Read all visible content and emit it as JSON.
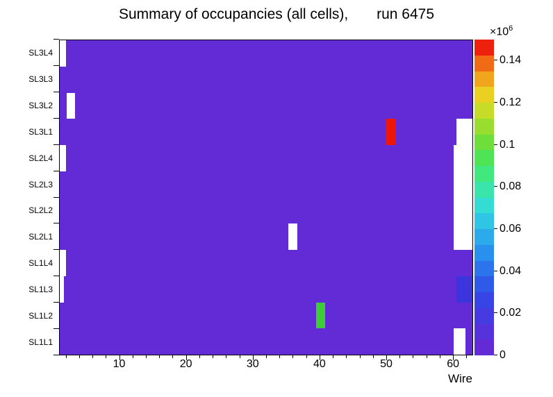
{
  "chart_data": {
    "type": "heatmap",
    "title": "Summary of occupancies (all cells),       run 6475",
    "xlabel": "Wire",
    "ylabel": "",
    "x_min": 1,
    "x_max": 63,
    "x_major_ticks": [
      10,
      20,
      30,
      40,
      50,
      60
    ],
    "x_minor_tick_step": 2,
    "rows_bottom_to_top": [
      "SL1L1",
      "SL1L2",
      "SL1L3",
      "SL1L4",
      "SL2L1",
      "SL2L2",
      "SL2L3",
      "SL2L4",
      "SL3L1",
      "SL3L2",
      "SL3L3",
      "SL3L4"
    ],
    "background_color": "#632bd5",
    "background_value_est_e6": 0.005,
    "colorbar": {
      "multiplier_base": "×10",
      "multiplier_exp": "6",
      "vmin": 0,
      "vmax": 0.15,
      "tick_values": [
        0,
        0.02,
        0.04,
        0.06,
        0.08,
        0.1,
        0.12,
        0.14
      ],
      "tick_labels": [
        "0",
        "0.02",
        "0.04",
        "0.06",
        "0.08",
        "0.1",
        "0.12",
        "0.14"
      ],
      "colors_bottom_to_top": [
        "#632bd5",
        "#5532dc",
        "#453be1",
        "#3845e6",
        "#2f5ae9",
        "#2b74ec",
        "#2a90ee",
        "#2cabec",
        "#2fc6e6",
        "#35dcd4",
        "#3ae5ab",
        "#41e87e",
        "#4fe455",
        "#6ede3a",
        "#99de2e",
        "#c6dc28",
        "#e9d023",
        "#f0a51d",
        "#f16a15",
        "#ee200e"
      ]
    },
    "cells": [
      {
        "row": "SL3L4",
        "w0": 1,
        "w1": 1.9,
        "color": "#ffffff",
        "kind": "empty"
      },
      {
        "row": "SL3L2",
        "w0": 2,
        "w1": 3.3,
        "color": "#ffffff",
        "kind": "empty"
      },
      {
        "row": "SL3L1",
        "w0": 50,
        "w1": 51.5,
        "color": "#ee1509",
        "kind": "hot",
        "value_est_e6": 0.15
      },
      {
        "row": "SL3L1",
        "w0": 60.6,
        "w1": 63,
        "color": "#ffffff",
        "kind": "empty"
      },
      {
        "row": "SL2L4",
        "w0": 1,
        "w1": 1.9,
        "color": "#ffffff",
        "kind": "empty"
      },
      {
        "row": "SL2L4",
        "w0": 60.2,
        "w1": 63,
        "color": "#ffffff",
        "kind": "empty"
      },
      {
        "row": "SL2L3",
        "w0": 60.2,
        "w1": 63,
        "color": "#ffffff",
        "kind": "empty"
      },
      {
        "row": "SL2L2",
        "w0": 60.2,
        "w1": 63,
        "color": "#ffffff",
        "kind": "empty"
      },
      {
        "row": "SL2L1",
        "w0": 35.3,
        "w1": 36.7,
        "color": "#ffffff",
        "kind": "empty"
      },
      {
        "row": "SL2L1",
        "w0": 60.2,
        "w1": 63,
        "color": "#ffffff",
        "kind": "empty"
      },
      {
        "row": "SL1L4",
        "w0": 1,
        "w1": 1.9,
        "color": "#ffffff",
        "kind": "empty"
      },
      {
        "row": "SL1L3",
        "w0": 1,
        "w1": 1.6,
        "color": "#ffffff",
        "kind": "empty"
      },
      {
        "row": "SL1L3",
        "w0": 60.6,
        "w1": 63,
        "color": "#3c35dd",
        "kind": "hot",
        "value_est_e6": 0.025
      },
      {
        "row": "SL1L2",
        "w0": 39.5,
        "w1": 40.9,
        "color": "#3ecc37",
        "kind": "hot",
        "value_est_e6": 0.09
      },
      {
        "row": "SL1L1",
        "w0": 60.2,
        "w1": 62,
        "color": "#ffffff",
        "kind": "empty"
      }
    ]
  }
}
